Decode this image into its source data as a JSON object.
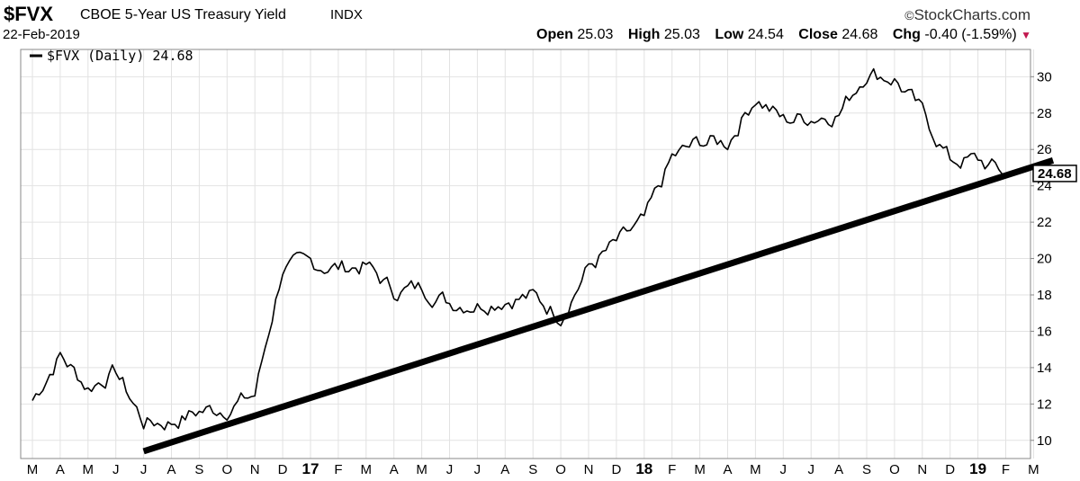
{
  "header": {
    "symbol": "$FVX",
    "description": "CBOE 5-Year US Treasury Yield",
    "exchange": "INDX",
    "date": "22-Feb-2019",
    "brand": "StockCharts.com",
    "brand_symbol": "©",
    "open_label": "Open",
    "open": "25.03",
    "high_label": "High",
    "high": "25.03",
    "low_label": "Low",
    "low": "24.54",
    "close_label": "Close",
    "close": "24.68",
    "chg_label": "Chg",
    "chg": "-0.40 (-1.59%)",
    "chg_color": "#c2184f"
  },
  "chart_data": {
    "type": "line",
    "legend": "$FVX (Daily) 24.68",
    "legend_placement": "top-left",
    "last_value_label": "24.68",
    "grid": true,
    "ylim": [
      9,
      31.5
    ],
    "y_ticks": [
      10,
      12,
      14,
      16,
      18,
      20,
      22,
      24,
      26,
      28,
      30
    ],
    "x_ticks": [
      {
        "label": "M",
        "bold": false
      },
      {
        "label": "A",
        "bold": false
      },
      {
        "label": "M",
        "bold": false
      },
      {
        "label": "J",
        "bold": false
      },
      {
        "label": "J",
        "bold": false
      },
      {
        "label": "A",
        "bold": false
      },
      {
        "label": "S",
        "bold": false
      },
      {
        "label": "O",
        "bold": false
      },
      {
        "label": "N",
        "bold": false
      },
      {
        "label": "D",
        "bold": false
      },
      {
        "label": "17",
        "bold": true
      },
      {
        "label": "F",
        "bold": false
      },
      {
        "label": "M",
        "bold": false
      },
      {
        "label": "A",
        "bold": false
      },
      {
        "label": "M",
        "bold": false
      },
      {
        "label": "J",
        "bold": false
      },
      {
        "label": "J",
        "bold": false
      },
      {
        "label": "A",
        "bold": false
      },
      {
        "label": "S",
        "bold": false
      },
      {
        "label": "O",
        "bold": false
      },
      {
        "label": "N",
        "bold": false
      },
      {
        "label": "D",
        "bold": false
      },
      {
        "label": "18",
        "bold": true
      },
      {
        "label": "F",
        "bold": false
      },
      {
        "label": "M",
        "bold": false
      },
      {
        "label": "A",
        "bold": false
      },
      {
        "label": "M",
        "bold": false
      },
      {
        "label": "J",
        "bold": false
      },
      {
        "label": "J",
        "bold": false
      },
      {
        "label": "A",
        "bold": false
      },
      {
        "label": "S",
        "bold": false
      },
      {
        "label": "O",
        "bold": false
      },
      {
        "label": "N",
        "bold": false
      },
      {
        "label": "D",
        "bold": false
      },
      {
        "label": "19",
        "bold": true
      },
      {
        "label": "F",
        "bold": false
      },
      {
        "label": "M",
        "bold": false
      }
    ],
    "series": [
      {
        "values_by_month": [
          12.2,
          14.7,
          12.9,
          13.8,
          11.0,
          11.0,
          11.6,
          11.8,
          12.5,
          19.5,
          19.7,
          19.5,
          19.6,
          18.2,
          18.4,
          17.6,
          17.5,
          17.8,
          17.9,
          16.9,
          19.5,
          20.8,
          22.0,
          25.5,
          26.4,
          26.4,
          28.9,
          27.6,
          27.8,
          28.0,
          30.3,
          29.9,
          28.0,
          25.4,
          25.4,
          24.68
        ]
      }
    ],
    "trendline": [
      {
        "month_index": 4.0,
        "value": 9.4
      },
      {
        "month_index": 36.7,
        "value": 25.4
      }
    ]
  }
}
